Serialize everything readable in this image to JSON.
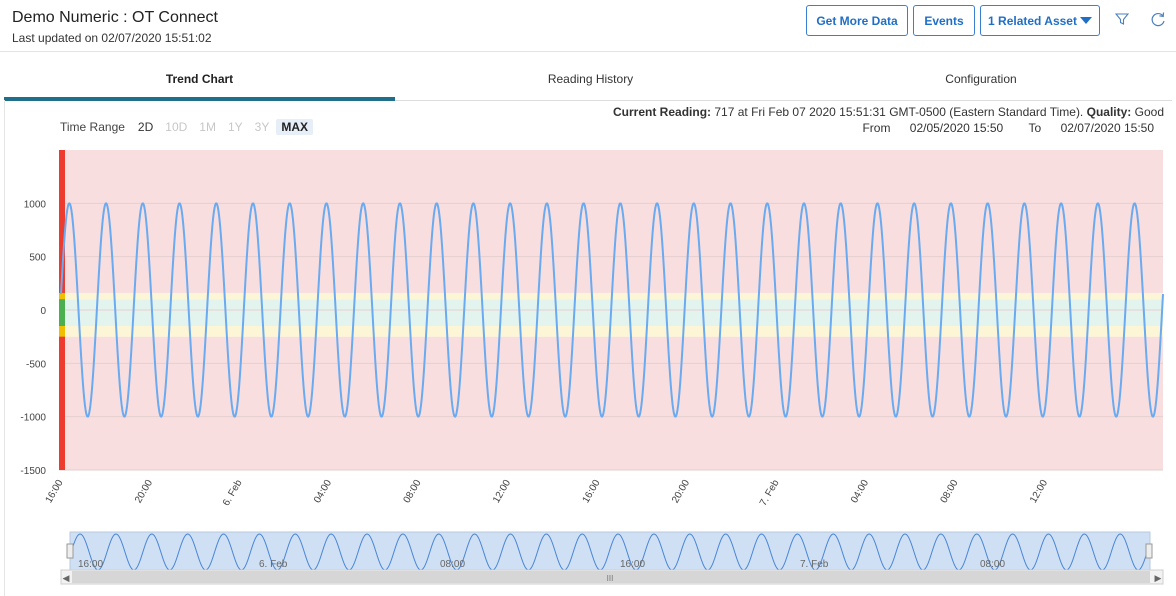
{
  "header": {
    "title": "Demo Numeric : OT Connect",
    "last_updated": "Last updated on 02/07/2020 15:51:02",
    "buttons": {
      "get_more_data": "Get More Data",
      "events": "Events",
      "related_asset": "1 Related Asset"
    }
  },
  "tabs": [
    {
      "label": "Trend Chart",
      "active": true
    },
    {
      "label": "Reading History",
      "active": false
    },
    {
      "label": "Configuration",
      "active": false
    }
  ],
  "time_range": {
    "label": "Time Range",
    "options": [
      {
        "label": "2D",
        "enabled": true
      },
      {
        "label": "10D",
        "enabled": false
      },
      {
        "label": "1M",
        "enabled": false
      },
      {
        "label": "1Y",
        "enabled": false
      },
      {
        "label": "3Y",
        "enabled": false
      },
      {
        "label": "MAX",
        "enabled": true,
        "selected": true
      }
    ]
  },
  "current_reading": {
    "label": "Current Reading:",
    "value": "717 at",
    "text": "Fri Feb 07 2020 15:51:31 GMT-0500 (Eastern Standard Time).",
    "quality_label": "Quality:",
    "quality_value": "Good"
  },
  "date_range": {
    "from_label": "From",
    "from_value": "02/05/2020 15:50",
    "to_label": "To",
    "to_value": "02/07/2020 15:50"
  },
  "chart_data": {
    "type": "line",
    "series": [
      {
        "values": "sine wave oscillating between -1000 and 1000, ~30 cycles, ending at -300",
        "color": "#6aaaf0"
      }
    ],
    "amplitude": 1000,
    "cycles": 30,
    "ylim": [
      -1500,
      1500
    ],
    "y_ticks": [
      "1000",
      "500",
      "0",
      "-500",
      "-1000",
      "-1500"
    ],
    "y_tick_values": [
      1000,
      500,
      0,
      -500,
      -1000,
      -1500
    ],
    "x_ticks": [
      "16:00",
      "20:00",
      "6. Feb",
      "04:00",
      "08:00",
      "12:00",
      "16:00",
      "20:00",
      "7. Feb",
      "04:00",
      "08:00",
      "12:00"
    ],
    "bands": [
      {
        "from": -1500,
        "to": -250,
        "color": "#f8dede"
      },
      {
        "from": -250,
        "to": -150,
        "color": "#fdf6d6"
      },
      {
        "from": -150,
        "to": 100,
        "color": "#e3f3ee"
      },
      {
        "from": 100,
        "to": 160,
        "color": "#fdf6d6"
      },
      {
        "from": 160,
        "to": 1500,
        "color": "#f8dede"
      }
    ],
    "navigator_labels": [
      "16:00",
      "6. Feb",
      "08:00",
      "16:00",
      "7. Feb",
      "08:00"
    ],
    "navigator_scroll_mark": "III"
  },
  "colors": {
    "accent": "#1f6fc6",
    "tab_underline": "#1f6f8b",
    "band_red": "#f8dede",
    "band_yellow": "#fdf6d6",
    "band_green": "#e3f3ee"
  },
  "icons": {
    "filter": "filter-icon",
    "refresh": "refresh-icon",
    "dropdown": "caret-down-icon"
  }
}
